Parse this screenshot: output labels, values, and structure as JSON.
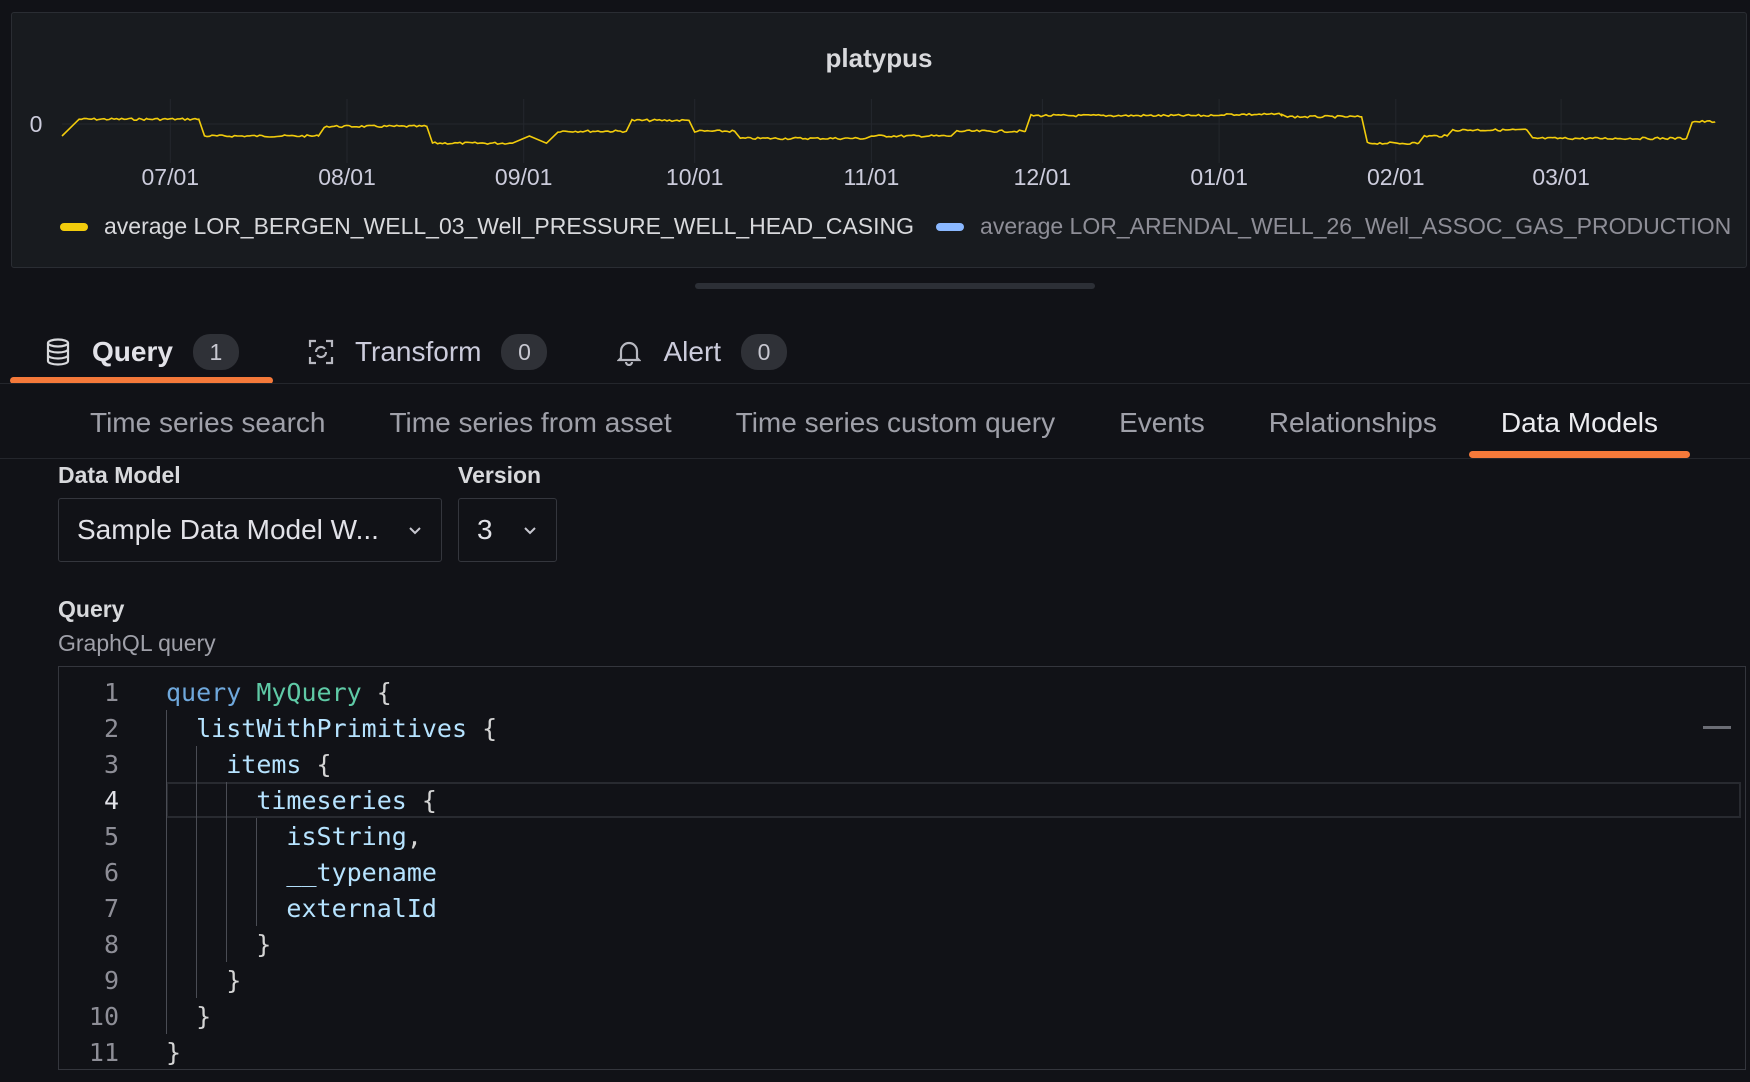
{
  "panel": {
    "title": "platypus"
  },
  "chart_data": {
    "type": "line",
    "title": "platypus",
    "y_ticks": [
      "0"
    ],
    "x_ticks": [
      "07/01",
      "08/01",
      "09/01",
      "10/01",
      "11/01",
      "12/01",
      "01/01",
      "02/01",
      "03/01"
    ],
    "series": [
      {
        "name": "average LOR_BERGEN_WELL_03_Well_PRESSURE_WELL_HEAD_CASING",
        "color": "#f2cc0c",
        "points": [
          [
            "06/12",
            -0.5
          ],
          [
            "06/15",
            0.2
          ],
          [
            "06/27",
            0.2
          ],
          [
            "07/06",
            0.2
          ],
          [
            "07/07",
            -0.5
          ],
          [
            "07/27",
            -0.5
          ],
          [
            "07/28",
            -0.1
          ],
          [
            "08/15",
            -0.1
          ],
          [
            "08/16",
            -0.8
          ],
          [
            "08/30",
            -0.8
          ],
          [
            "09/02",
            -0.5
          ],
          [
            "09/05",
            -0.8
          ],
          [
            "09/07",
            -0.3
          ],
          [
            "09/19",
            -0.3
          ],
          [
            "09/20",
            0.15
          ],
          [
            "09/30",
            0.15
          ],
          [
            "10/01",
            -0.3
          ],
          [
            "10/08",
            -0.3
          ],
          [
            "10/09",
            -0.6
          ],
          [
            "10/31",
            -0.6
          ],
          [
            "11/01",
            -0.5
          ],
          [
            "11/15",
            -0.5
          ],
          [
            "11/16",
            -0.3
          ],
          [
            "11/28",
            -0.3
          ],
          [
            "11/29",
            0.35
          ],
          [
            "12/31",
            0.35
          ],
          [
            "01/01",
            0.4
          ],
          [
            "01/12",
            0.4
          ],
          [
            "01/13",
            0.3
          ],
          [
            "01/26",
            0.3
          ],
          [
            "01/27",
            -0.8
          ],
          [
            "02/05",
            -0.8
          ],
          [
            "02/06",
            -0.5
          ],
          [
            "02/10",
            -0.5
          ],
          [
            "02/11",
            -0.25
          ],
          [
            "02/24",
            -0.25
          ],
          [
            "02/25",
            -0.6
          ],
          [
            "03/23",
            -0.6
          ],
          [
            "03/24",
            0.1
          ],
          [
            "03/28",
            0.1
          ]
        ]
      },
      {
        "name": "average LOR_ARENDAL_WELL_26_Well_ASSOC_GAS_PRODUCTION",
        "color": "#8ab8ff",
        "points": []
      }
    ]
  },
  "splitter": {},
  "tabs": [
    {
      "label": "Query",
      "count": "1",
      "icon": "database-icon",
      "active": true
    },
    {
      "label": "Transform",
      "count": "0",
      "icon": "transform-icon",
      "active": false
    },
    {
      "label": "Alert",
      "count": "0",
      "icon": "bell-icon",
      "active": false
    }
  ],
  "sub_tabs": [
    {
      "label": "Time series search",
      "active": false
    },
    {
      "label": "Time series from asset",
      "active": false
    },
    {
      "label": "Time series custom query",
      "active": false
    },
    {
      "label": "Events",
      "active": false
    },
    {
      "label": "Relationships",
      "active": false
    },
    {
      "label": "Data Models",
      "active": true
    }
  ],
  "form": {
    "data_model_label": "Data Model",
    "data_model_value": "Sample Data Model W...",
    "version_label": "Version",
    "version_value": "3",
    "query_label": "Query",
    "query_description": "GraphQL query"
  },
  "editor": {
    "current_line": 4,
    "lines": [
      {
        "num": "1",
        "text": "query MyQuery {"
      },
      {
        "num": "2",
        "text": "  listWithPrimitives {"
      },
      {
        "num": "3",
        "text": "    items {"
      },
      {
        "num": "4",
        "text": "      timeseries {"
      },
      {
        "num": "5",
        "text": "        isString,"
      },
      {
        "num": "6",
        "text": "        __typename"
      },
      {
        "num": "7",
        "text": "        externalId"
      },
      {
        "num": "8",
        "text": "      }"
      },
      {
        "num": "9",
        "text": "    }"
      },
      {
        "num": "10",
        "text": "  }"
      },
      {
        "num": "11",
        "text": "}"
      }
    ]
  }
}
